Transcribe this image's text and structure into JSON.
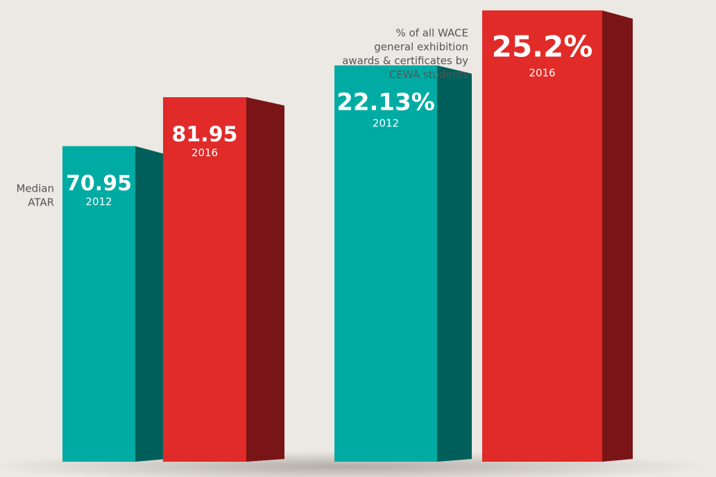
{
  "chart_data": [
    {
      "type": "bar3d",
      "label": [
        "Median",
        "ATAR"
      ],
      "categories": [
        "2012",
        "2016"
      ],
      "values": [
        70.95,
        81.95
      ],
      "colors": [
        "#00aba3",
        "#e02b29"
      ],
      "side_colors": [
        "#005f5a",
        "#7a1517"
      ]
    },
    {
      "type": "bar3d",
      "label": [
        "% of all WACE",
        "general exhibition",
        "awards & certificates by",
        "CEWA students"
      ],
      "categories": [
        "2012",
        "2016"
      ],
      "values": [
        22.13,
        25.2
      ],
      "value_labels": [
        "22.13%",
        "25.2%"
      ],
      "colors": [
        "#00aba3",
        "#e02b29"
      ],
      "side_colors": [
        "#005f5a",
        "#7a1517"
      ]
    }
  ]
}
